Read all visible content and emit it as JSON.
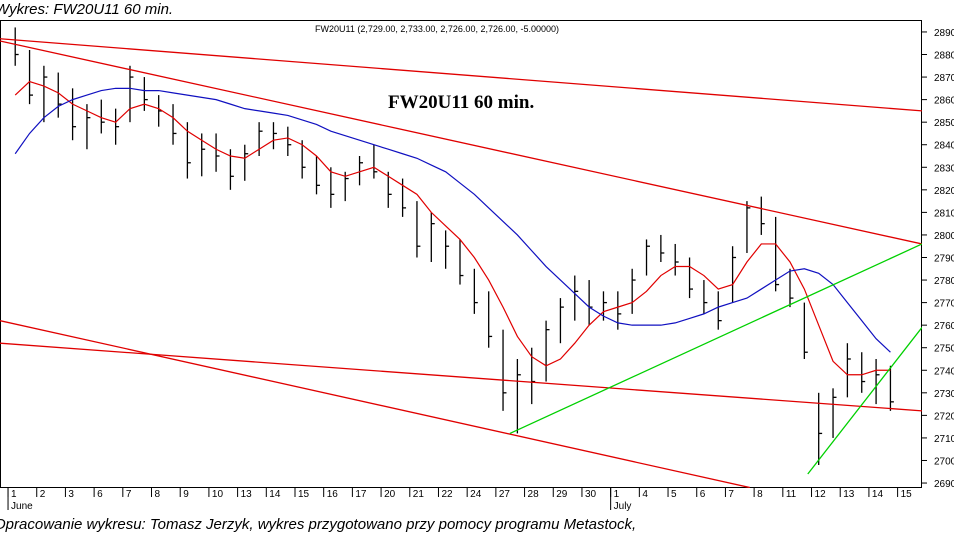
{
  "page": {
    "header": "Wykres: FW20U11 60 min.",
    "footer": "Opracowanie wykresu: Tomasz Jerzyk, wykres przygotowano przy pomocy programu Metastock,"
  },
  "chart_data": {
    "type": "ohlc",
    "title": "FW20U11 60 min.",
    "legend_text": "FW20U11 (2,729.00, 2,733.00, 2,726.00, 2,726.00, -5.00000)",
    "bar_color": "#000000",
    "x": [
      0.25,
      0.75,
      1.25,
      1.75,
      2.25,
      2.75,
      3.25,
      3.75,
      4.25,
      4.75,
      5.25,
      5.75,
      6.25,
      6.75,
      7.25,
      7.75,
      8.25,
      8.75,
      9.25,
      9.75,
      10.25,
      10.75,
      11.25,
      11.75,
      12.25,
      12.75,
      13.25,
      13.75,
      14.25,
      14.75,
      15.25,
      15.75,
      16.25,
      16.75,
      17.25,
      17.75,
      18.25,
      18.75,
      19.25,
      19.75,
      20.25,
      20.75,
      21.25,
      21.75,
      22.25,
      22.75,
      23.25,
      23.75,
      24.25,
      24.75,
      25.25,
      25.75,
      26.25,
      26.75,
      27.25,
      27.75,
      28.25,
      28.75,
      29.25,
      29.75,
      30.25,
      30.75
    ],
    "high": [
      2892,
      2882,
      2875,
      2872,
      2865,
      2858,
      2860,
      2856,
      2875,
      2870,
      2862,
      2858,
      2850,
      2845,
      2845,
      2838,
      2840,
      2850,
      2850,
      2848,
      2842,
      2835,
      2830,
      2828,
      2835,
      2840,
      2828,
      2825,
      2815,
      2810,
      2802,
      2798,
      2785,
      2775,
      2758,
      2745,
      2750,
      2762,
      2772,
      2782,
      2780,
      2775,
      2775,
      2785,
      2798,
      2800,
      2796,
      2790,
      2780,
      2775,
      2795,
      2815,
      2817,
      2808,
      2785,
      2770,
      2730,
      2732,
      2752,
      2748,
      2745,
      2742
    ],
    "low": [
      2875,
      2858,
      2850,
      2852,
      2842,
      2838,
      2845,
      2840,
      2850,
      2855,
      2848,
      2840,
      2825,
      2826,
      2828,
      2820,
      2824,
      2835,
      2838,
      2835,
      2825,
      2818,
      2812,
      2815,
      2822,
      2825,
      2812,
      2808,
      2790,
      2788,
      2785,
      2778,
      2765,
      2750,
      2722,
      2712,
      2725,
      2735,
      2752,
      2762,
      2760,
      2762,
      2758,
      2765,
      2782,
      2788,
      2782,
      2772,
      2765,
      2758,
      2770,
      2792,
      2800,
      2775,
      2768,
      2745,
      2698,
      2710,
      2728,
      2730,
      2725,
      2722
    ],
    "close": [
      2880,
      2862,
      2870,
      2858,
      2848,
      2852,
      2850,
      2848,
      2870,
      2860,
      2855,
      2845,
      2832,
      2838,
      2835,
      2826,
      2836,
      2846,
      2845,
      2840,
      2830,
      2822,
      2818,
      2825,
      2832,
      2828,
      2818,
      2812,
      2795,
      2805,
      2795,
      2782,
      2770,
      2755,
      2730,
      2738,
      2735,
      2758,
      2768,
      2775,
      2768,
      2770,
      2765,
      2780,
      2795,
      2792,
      2788,
      2776,
      2770,
      2762,
      2790,
      2812,
      2805,
      2778,
      2772,
      2748,
      2712,
      2728,
      2745,
      2735,
      2738,
      2726
    ],
    "moving_averages": [
      {
        "color": "#e00000",
        "values": [
          2862,
          2868,
          2866,
          2863,
          2858,
          2855,
          2852,
          2850,
          2856,
          2858,
          2856,
          2852,
          2846,
          2842,
          2838,
          2835,
          2834,
          2838,
          2842,
          2843,
          2840,
          2835,
          2828,
          2826,
          2828,
          2830,
          2826,
          2822,
          2818,
          2810,
          2804,
          2798,
          2790,
          2780,
          2768,
          2755,
          2746,
          2742,
          2745,
          2752,
          2760,
          2766,
          2768,
          2770,
          2775,
          2782,
          2786,
          2786,
          2782,
          2776,
          2778,
          2788,
          2796,
          2796,
          2788,
          2776,
          2760,
          2744,
          2738,
          2738,
          2740,
          2740
        ]
      },
      {
        "color": "#1010c0",
        "values": [
          2836,
          2845,
          2852,
          2857,
          2860,
          2862,
          2864,
          2865,
          2865,
          2864,
          2864,
          2863,
          2862,
          2861,
          2860,
          2858,
          2856,
          2855,
          2854,
          2853,
          2851,
          2849,
          2846,
          2844,
          2842,
          2840,
          2838,
          2836,
          2834,
          2831,
          2828,
          2823,
          2818,
          2812,
          2806,
          2800,
          2793,
          2786,
          2780,
          2774,
          2768,
          2764,
          2761,
          2760,
          2760,
          2760,
          2761,
          2763,
          2765,
          2768,
          2770,
          2772,
          2776,
          2780,
          2784,
          2785,
          2783,
          2778,
          2770,
          2762,
          2754,
          2748
        ]
      }
    ],
    "trendlines": [
      {
        "color": "#e00000",
        "x": [
          -0.28,
          31.85
        ],
        "y": [
          2887,
          2855
        ]
      },
      {
        "color": "#e00000",
        "x": [
          -0.28,
          31.85
        ],
        "y": [
          2886,
          2796
        ]
      },
      {
        "color": "#e00000",
        "x": [
          -0.28,
          25.85
        ],
        "y": [
          2762,
          2688
        ]
      },
      {
        "color": "#e00000",
        "x": [
          -0.28,
          31.85
        ],
        "y": [
          2752,
          2722
        ]
      },
      {
        "color": "#00d000",
        "x": [
          17.49,
          31.85
        ],
        "y": [
          2712,
          2796
        ]
      },
      {
        "color": "#00d000",
        "x": [
          27.87,
          31.85
        ],
        "y": [
          2694,
          2759
        ]
      }
    ],
    "xlim": [
      -0.28,
      31.85
    ],
    "ylim": [
      2687.8,
      2895.3
    ],
    "yticks": [
      2690,
      2700,
      2710,
      2720,
      2730,
      2740,
      2750,
      2760,
      2770,
      2780,
      2790,
      2800,
      2810,
      2820,
      2830,
      2840,
      2850,
      2860,
      2870,
      2880,
      2890
    ],
    "xticks": [
      {
        "value": 0,
        "label": "1"
      },
      {
        "value": 1,
        "label": "2"
      },
      {
        "value": 2,
        "label": "3"
      },
      {
        "value": 3,
        "label": "6"
      },
      {
        "value": 4,
        "label": "7"
      },
      {
        "value": 5,
        "label": "8"
      },
      {
        "value": 6,
        "label": "9"
      },
      {
        "value": 7,
        "label": "10"
      },
      {
        "value": 8,
        "label": "13"
      },
      {
        "value": 9,
        "label": "14"
      },
      {
        "value": 10,
        "label": "15"
      },
      {
        "value": 11,
        "label": "16"
      },
      {
        "value": 12,
        "label": "17"
      },
      {
        "value": 13,
        "label": "20"
      },
      {
        "value": 14,
        "label": "21"
      },
      {
        "value": 15,
        "label": "22"
      },
      {
        "value": 16,
        "label": "24"
      },
      {
        "value": 17,
        "label": "27"
      },
      {
        "value": 18,
        "label": "28"
      },
      {
        "value": 19,
        "label": "29"
      },
      {
        "value": 20,
        "label": "30"
      },
      {
        "value": 21,
        "label": "1"
      },
      {
        "value": 22,
        "label": "4"
      },
      {
        "value": 23,
        "label": "5"
      },
      {
        "value": 24,
        "label": "6"
      },
      {
        "value": 25,
        "label": "7"
      },
      {
        "value": 26,
        "label": "8"
      },
      {
        "value": 27,
        "label": "11"
      },
      {
        "value": 28,
        "label": "12"
      },
      {
        "value": 29,
        "label": "13"
      },
      {
        "value": 30,
        "label": "14"
      },
      {
        "value": 31,
        "label": "15"
      }
    ],
    "month_labels": [
      {
        "value": 0,
        "label": "June"
      },
      {
        "value": 21,
        "label": "July"
      }
    ]
  }
}
